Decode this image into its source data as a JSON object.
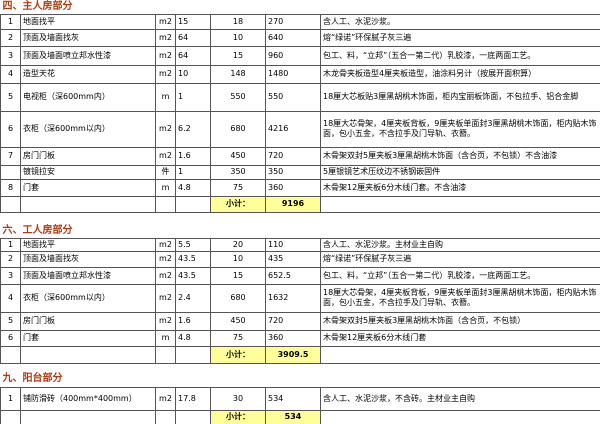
{
  "sections": [
    {
      "title": "四、主人房部分",
      "items": [
        {
          "no": 1,
          "name": "地面找平",
          "unit": "m2",
          "qty": 15,
          "price": 18,
          "total": 270,
          "note": "含人工、水泥沙浆。"
        },
        {
          "no": 2,
          "name": "顶面及墙面找灰",
          "unit": "m2",
          "qty": 64,
          "price": 10,
          "total": 640,
          "note": "熔“绿诺”环保腻子灰三遍"
        },
        {
          "no": 3,
          "name": "顶面及墙面喷立邦水性漆",
          "unit": "m2",
          "qty": 64,
          "price": 15,
          "total": 960,
          "note": "包工、料，“立邦”（五合一第二代）乳胶漆，一底两面工艺。"
        },
        {
          "no": 4,
          "name": "造型天花",
          "unit": "m2",
          "qty": 10,
          "price": 148,
          "total": 1480,
          "note": "木龙骨夹板造型4厘夹板造型，油涂料另计（按展开面积算）"
        },
        {
          "no": 5,
          "name": "电视柜（深600mm内）",
          "unit": "m",
          "qty": 1,
          "price": 550,
          "total": 550,
          "note": "18厘大芯板贴3厘黑胡桃木饰面，柜内宝丽板饰面，不包拉手、铝合金脚"
        },
        {
          "no": 6,
          "name": "衣柜（深600mm以内）",
          "unit": "m2",
          "qty": 6.2,
          "price": 680,
          "total": 4216,
          "note": "18厘大芯骨架，4厘夹板背板，9厘夹板单面封3厘黑胡桃木饰面，柜内贴木饰面，包小五金，不含拉手及门导轨、衣簪。"
        },
        {
          "no": 7,
          "name": "房门门板",
          "unit": "m2",
          "qty": 1.6,
          "price": 450,
          "total": 720,
          "note": "木骨架双封5厘夹板3厘黑胡桃木饰面（含合页，不包锁）不含油漆"
        },
        {
          "name": "镀镜拉安",
          "unit": "件",
          "qty": 1,
          "price": 350,
          "total": 350,
          "note": "5厘银镜艺术压纹边不锈钢嵌固件"
        },
        {
          "no": 8,
          "name": "门套",
          "unit": "m",
          "qty": 4.8,
          "price": 75,
          "total": 360,
          "note": "木骨架12厘夹板6分木线门套。不含油漆"
        }
      ],
      "subtotal_label": "小计：",
      "subtotal": 9196
    },
    {
      "title": "六、工人房部分",
      "items": [
        {
          "no": 1,
          "name": "地面找平",
          "unit": "m2",
          "qty": 5.5,
          "price": 20,
          "total": 110,
          "note": "含人工、水泥沙浆。主材业主自购"
        },
        {
          "no": 2,
          "name": "顶面及墙面找灰",
          "unit": "m2",
          "qty": 43.5,
          "price": 10,
          "total": 435,
          "note": "熔“绿诺”环保腻子灰三遍"
        },
        {
          "no": 3,
          "name": "顶面及墙面喷立邦水性漆",
          "unit": "m2",
          "qty": 43.5,
          "price": 15,
          "total": 652.5,
          "note": "包工、料，“立邦”（五合一第二代）乳胶漆，一底两面工艺。"
        },
        {
          "no": 4,
          "name": "衣柜（深600mm以内）",
          "unit": "m2",
          "qty": 2.4,
          "price": 680,
          "total": 1632,
          "note": "18厘大芯骨架，4厘夹板背板，9厘夹板单面封3厘黑胡桃木饰面，柜内贴木饰面，包小五金，不含拉手及门导轨、衣簪。"
        },
        {
          "no": 5,
          "name": "房门门板",
          "unit": "m2",
          "qty": 1.6,
          "price": 450,
          "total": 720,
          "note": "木骨架双封5厘夹板3厘黑胡桃木饰面（含合页，不包锁）"
        },
        {
          "no": 6,
          "name": "门套",
          "unit": "m",
          "qty": 4.8,
          "price": 75,
          "total": 360,
          "note": "木骨架12厘夹板6分木线门套"
        }
      ],
      "subtotal_label": "小计：",
      "subtotal": 3909.5
    },
    {
      "title": "九、阳台部分",
      "items": [
        {
          "no": 1,
          "name": "铺防滑砖（400mm*400mm）",
          "unit": "m2",
          "qty": 17.8,
          "price": 30,
          "total": 534,
          "note": "含人工、水泥沙浆，不含砖。主材业主自购"
        }
      ],
      "subtotal_label": "小计：",
      "subtotal": 534
    }
  ]
}
